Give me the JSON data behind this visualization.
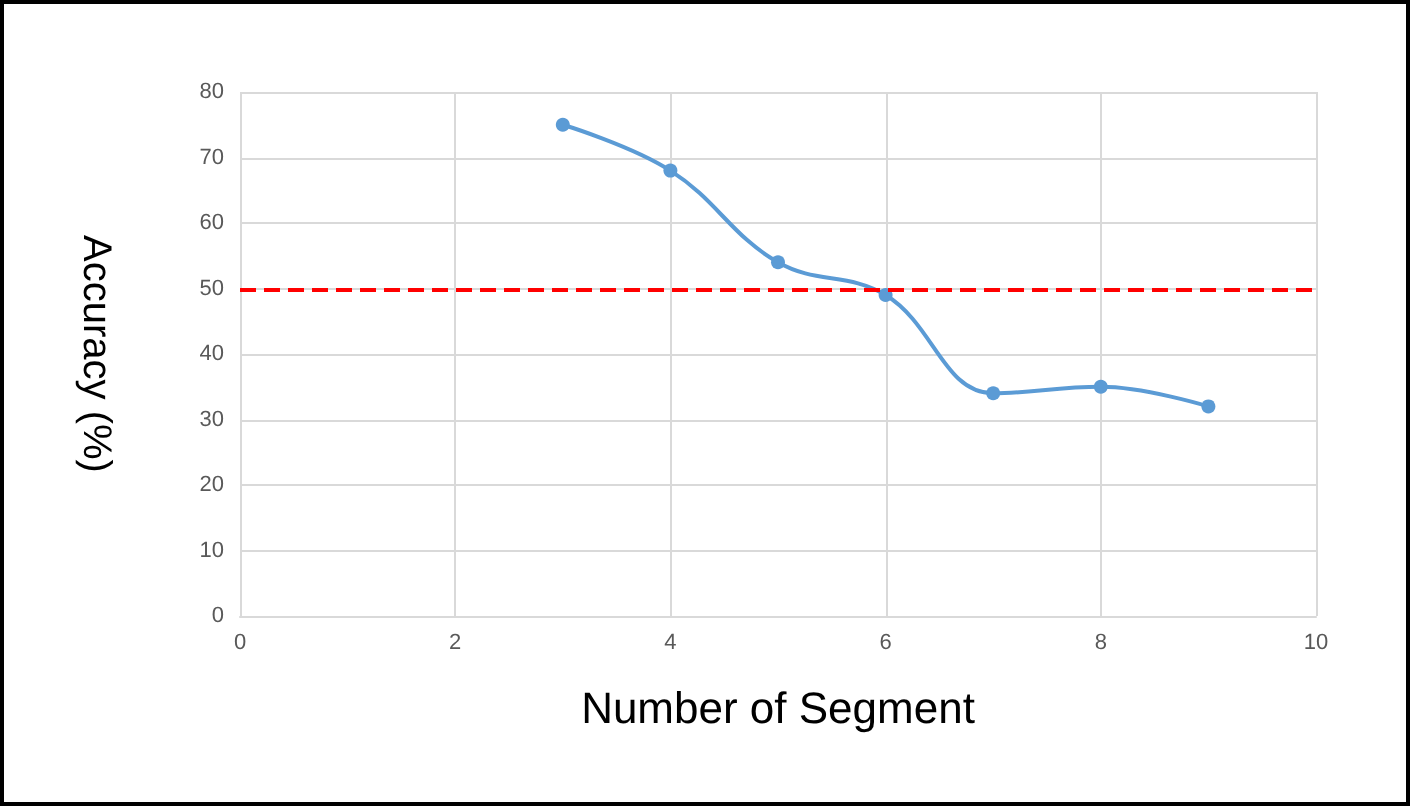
{
  "chart_data": {
    "type": "line",
    "xlabel": "Number of Segment",
    "ylabel": "Accuracy (%)",
    "x": [
      3,
      4,
      5,
      6,
      7,
      8,
      9
    ],
    "series": [
      {
        "color": "#5b9bd5",
        "values": [
          75,
          68,
          54,
          49,
          34,
          35,
          32
        ]
      }
    ],
    "xlim": [
      0,
      10
    ],
    "xticks": [
      0,
      2,
      4,
      6,
      8,
      10
    ],
    "ylim": [
      0,
      80
    ],
    "yticks": [
      0,
      10,
      20,
      30,
      40,
      50,
      60,
      70,
      80
    ],
    "grid": true,
    "marker": "circle",
    "line_style": "solid",
    "ref_lines": [
      {
        "axis": "y",
        "value": 50,
        "color": "#ff0000",
        "line_style": "dashed"
      }
    ]
  }
}
